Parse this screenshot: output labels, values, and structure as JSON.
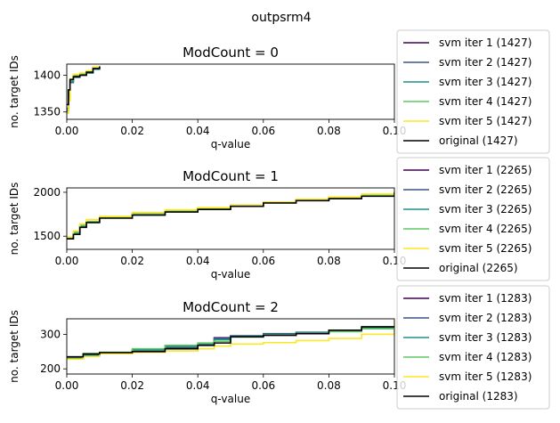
{
  "suptitle": "outpsrm4",
  "colors": {
    "svm iter 1": "#440154",
    "svm iter 2": "#3b528b",
    "svm iter 3": "#21918c",
    "svm iter 4": "#5ec962",
    "svm iter 5": "#fde725",
    "original": "#000000"
  },
  "chart_data": [
    {
      "type": "line",
      "title": "ModCount = 0",
      "xlabel": "q-value",
      "ylabel": "no. target IDs",
      "xlim": [
        0,
        0.1
      ],
      "ylim": [
        1340,
        1415
      ],
      "xticks": [
        "0.00",
        "0.02",
        "0.04",
        "0.06",
        "0.08",
        "0.10"
      ],
      "yticks": [
        1350,
        1400
      ],
      "legend": [
        "svm iter 1 (1427)",
        "svm iter 2 (1427)",
        "svm iter 3 (1427)",
        "svm iter 4 (1427)",
        "svm iter 5 (1427)",
        "original (1427)"
      ],
      "series": [
        {
          "name": "svm iter 1",
          "x": [
            0,
            0.0005,
            0.001,
            0.002,
            0.004,
            0.006,
            0.008,
            0.01
          ],
          "y": [
            1352,
            1372,
            1392,
            1398,
            1401,
            1403,
            1409,
            1412
          ]
        },
        {
          "name": "svm iter 2",
          "x": [
            0,
            0.0005,
            0.001,
            0.002,
            0.004,
            0.006,
            0.008,
            0.01
          ],
          "y": [
            1355,
            1378,
            1390,
            1397,
            1400,
            1404,
            1410,
            1412
          ]
        },
        {
          "name": "svm iter 3",
          "x": [
            0,
            0.0005,
            0.001,
            0.002,
            0.004,
            0.006,
            0.008,
            0.01
          ],
          "y": [
            1353,
            1375,
            1391,
            1399,
            1402,
            1403,
            1408,
            1412
          ]
        },
        {
          "name": "svm iter 4",
          "x": [
            0,
            0.0005,
            0.001,
            0.002,
            0.004,
            0.006,
            0.008,
            0.01
          ],
          "y": [
            1350,
            1370,
            1393,
            1400,
            1402,
            1405,
            1410,
            1412
          ]
        },
        {
          "name": "svm iter 5",
          "x": [
            0,
            0.0005,
            0.001,
            0.002,
            0.004,
            0.006,
            0.008,
            0.01
          ],
          "y": [
            1348,
            1365,
            1395,
            1401,
            1403,
            1406,
            1411,
            1412
          ]
        },
        {
          "name": "original",
          "x": [
            0,
            0.0005,
            0.001,
            0.002,
            0.004,
            0.006,
            0.008,
            0.01
          ],
          "y": [
            1360,
            1380,
            1394,
            1398,
            1400,
            1404,
            1409,
            1412
          ]
        }
      ]
    },
    {
      "type": "line",
      "title": "ModCount = 1",
      "xlabel": "q-value",
      "ylabel": "no. target IDs",
      "xlim": [
        0,
        0.1
      ],
      "ylim": [
        1350,
        2050
      ],
      "xticks": [
        "0.00",
        "0.02",
        "0.04",
        "0.06",
        "0.08",
        "0.10"
      ],
      "yticks": [
        1500,
        2000
      ],
      "legend": [
        "svm iter 1 (2265)",
        "svm iter 2 (2265)",
        "svm iter 3 (2265)",
        "svm iter 4 (2265)",
        "svm iter 5 (2265)",
        "original (2265)"
      ],
      "series": [
        {
          "name": "svm iter 1",
          "x": [
            0,
            0.002,
            0.004,
            0.006,
            0.01,
            0.02,
            0.03,
            0.04,
            0.05,
            0.06,
            0.07,
            0.08,
            0.09,
            0.1
          ],
          "y": [
            1470,
            1530,
            1610,
            1660,
            1710,
            1745,
            1780,
            1810,
            1840,
            1880,
            1910,
            1930,
            1960,
            2000
          ]
        },
        {
          "name": "svm iter 2",
          "x": [
            0,
            0.002,
            0.004,
            0.006,
            0.01,
            0.02,
            0.03,
            0.04,
            0.05,
            0.06,
            0.07,
            0.08,
            0.09,
            0.1
          ],
          "y": [
            1480,
            1540,
            1620,
            1665,
            1715,
            1750,
            1785,
            1815,
            1850,
            1885,
            1912,
            1935,
            1965,
            2005
          ]
        },
        {
          "name": "svm iter 3",
          "x": [
            0,
            0.002,
            0.004,
            0.006,
            0.01,
            0.02,
            0.03,
            0.04,
            0.05,
            0.06,
            0.07,
            0.08,
            0.09,
            0.1
          ],
          "y": [
            1475,
            1535,
            1615,
            1662,
            1712,
            1748,
            1782,
            1812,
            1845,
            1882,
            1908,
            1932,
            1962,
            2002
          ]
        },
        {
          "name": "svm iter 4",
          "x": [
            0,
            0.002,
            0.004,
            0.006,
            0.01,
            0.02,
            0.03,
            0.04,
            0.05,
            0.06,
            0.07,
            0.08,
            0.09,
            0.1
          ],
          "y": [
            1485,
            1545,
            1625,
            1668,
            1718,
            1752,
            1788,
            1818,
            1848,
            1884,
            1914,
            1938,
            1968,
            2008
          ]
        },
        {
          "name": "svm iter 5",
          "x": [
            0,
            0.002,
            0.004,
            0.006,
            0.01,
            0.02,
            0.03,
            0.04,
            0.05,
            0.06,
            0.07,
            0.08,
            0.09,
            0.1
          ],
          "y": [
            1490,
            1560,
            1640,
            1690,
            1725,
            1770,
            1800,
            1825,
            1855,
            1890,
            1920,
            1945,
            1980,
            2020
          ]
        },
        {
          "name": "original",
          "x": [
            0,
            0.002,
            0.004,
            0.006,
            0.01,
            0.02,
            0.03,
            0.04,
            0.05,
            0.06,
            0.07,
            0.08,
            0.09,
            0.1
          ],
          "y": [
            1470,
            1520,
            1600,
            1655,
            1705,
            1740,
            1775,
            1805,
            1840,
            1878,
            1905,
            1928,
            1955,
            1998
          ]
        }
      ]
    },
    {
      "type": "line",
      "title": "ModCount = 2",
      "xlabel": "q-value",
      "ylabel": "no. target IDs",
      "xlim": [
        0,
        0.1
      ],
      "ylim": [
        185,
        345
      ],
      "xticks": [
        "0.00",
        "0.02",
        "0.04",
        "0.06",
        "0.08",
        "0.10"
      ],
      "yticks": [
        200,
        300
      ],
      "legend": [
        "svm iter 1 (1283)",
        "svm iter 2 (1283)",
        "svm iter 3 (1283)",
        "svm iter 4 (1283)",
        "svm iter 5 (1283)",
        "original (1283)"
      ],
      "series": [
        {
          "name": "svm iter 1",
          "x": [
            0,
            0.005,
            0.01,
            0.02,
            0.03,
            0.04,
            0.045,
            0.05,
            0.06,
            0.07,
            0.08,
            0.09,
            0.1
          ],
          "y": [
            232,
            240,
            245,
            252,
            262,
            270,
            290,
            295,
            300,
            305,
            310,
            320,
            322
          ]
        },
        {
          "name": "svm iter 2",
          "x": [
            0,
            0.005,
            0.01,
            0.02,
            0.03,
            0.04,
            0.045,
            0.05,
            0.06,
            0.07,
            0.08,
            0.09,
            0.1
          ],
          "y": [
            234,
            242,
            246,
            255,
            265,
            272,
            288,
            296,
            302,
            306,
            312,
            318,
            320
          ]
        },
        {
          "name": "svm iter 3",
          "x": [
            0,
            0.005,
            0.01,
            0.02,
            0.03,
            0.04,
            0.045,
            0.05,
            0.06,
            0.07,
            0.08,
            0.09,
            0.1
          ],
          "y": [
            230,
            238,
            244,
            253,
            263,
            271,
            285,
            294,
            299,
            304,
            311,
            319,
            321
          ]
        },
        {
          "name": "svm iter 4",
          "x": [
            0,
            0.005,
            0.01,
            0.02,
            0.03,
            0.04,
            0.045,
            0.05,
            0.06,
            0.07,
            0.08,
            0.09,
            0.1
          ],
          "y": [
            235,
            245,
            248,
            258,
            268,
            275,
            280,
            292,
            298,
            303,
            308,
            316,
            320
          ]
        },
        {
          "name": "svm iter 5",
          "x": [
            0,
            0.005,
            0.01,
            0.02,
            0.03,
            0.04,
            0.045,
            0.05,
            0.06,
            0.07,
            0.08,
            0.09,
            0.1
          ],
          "y": [
            228,
            236,
            244,
            248,
            252,
            258,
            266,
            272,
            276,
            282,
            288,
            300,
            340
          ]
        },
        {
          "name": "original",
          "x": [
            0,
            0.005,
            0.01,
            0.02,
            0.03,
            0.04,
            0.045,
            0.05,
            0.06,
            0.07,
            0.08,
            0.09,
            0.1
          ],
          "y": [
            235,
            243,
            247,
            250,
            258,
            268,
            275,
            293,
            297,
            302,
            312,
            322,
            320
          ]
        }
      ]
    }
  ]
}
